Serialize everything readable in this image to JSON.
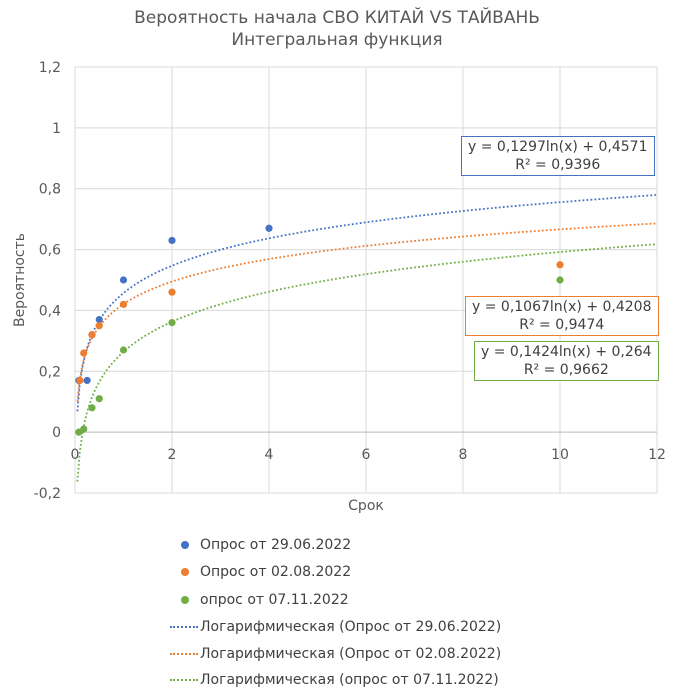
{
  "chart_data": {
    "type": "scatter",
    "title": "Вероятность начала СВО КИТАЙ VS ТАЙВАНЬ",
    "subtitle": "Интегральная функция",
    "xlabel": "Срок",
    "ylabel": "Вероятность",
    "xlim": [
      0,
      12
    ],
    "ylim": [
      -0.2,
      1.2
    ],
    "xticks": [
      "0",
      "2",
      "4",
      "6",
      "8",
      "10",
      "12"
    ],
    "yticks": [
      "-0,2",
      "0",
      "0,2",
      "0,4",
      "0,6",
      "0,8",
      "1",
      "1,2"
    ],
    "grid": true,
    "legend_position": "bottom",
    "series": [
      {
        "name": "Опрос от 29.06.2022",
        "color": "#4472C4",
        "points": [
          [
            0.08,
            0.17
          ],
          [
            0.25,
            0.17
          ],
          [
            0.35,
            0.32
          ],
          [
            0.5,
            0.37
          ],
          [
            1,
            0.5
          ],
          [
            2,
            0.63
          ],
          [
            4,
            0.67
          ]
        ],
        "trend": {
          "a": 0.1297,
          "b": 0.4571,
          "equation": "y = 0,1297ln(x) + 0,4571",
          "r2": "R² = 0,9396",
          "name": "Логарифмическая (Опрос от 29.06.2022)"
        }
      },
      {
        "name": "Опрос от 02.08.2022",
        "color": "#ED7D31",
        "points": [
          [
            0.1,
            0.17
          ],
          [
            0.18,
            0.26
          ],
          [
            0.35,
            0.32
          ],
          [
            0.5,
            0.35
          ],
          [
            1,
            0.42
          ],
          [
            2,
            0.46
          ],
          [
            10,
            0.55
          ]
        ],
        "trend": {
          "a": 0.1067,
          "b": 0.4208,
          "equation": "y = 0,1067ln(x) + 0,4208",
          "r2": "R² = 0,9474",
          "name": "Логарифмическая (Опрос от 02.08.2022)"
        }
      },
      {
        "name": "опрос от 07.11.2022",
        "color": "#70AD47",
        "points": [
          [
            0.08,
            0.0
          ],
          [
            0.18,
            0.01
          ],
          [
            0.35,
            0.08
          ],
          [
            0.5,
            0.11
          ],
          [
            1,
            0.27
          ],
          [
            2,
            0.36
          ],
          [
            10,
            0.5
          ]
        ],
        "trend": {
          "a": 0.1424,
          "b": 0.264,
          "equation": "y = 0,1424ln(x) + 0,264",
          "r2": "R² = 0,9662",
          "name": "Логарифмическая (опрос от 07.11.2022)"
        }
      }
    ]
  }
}
